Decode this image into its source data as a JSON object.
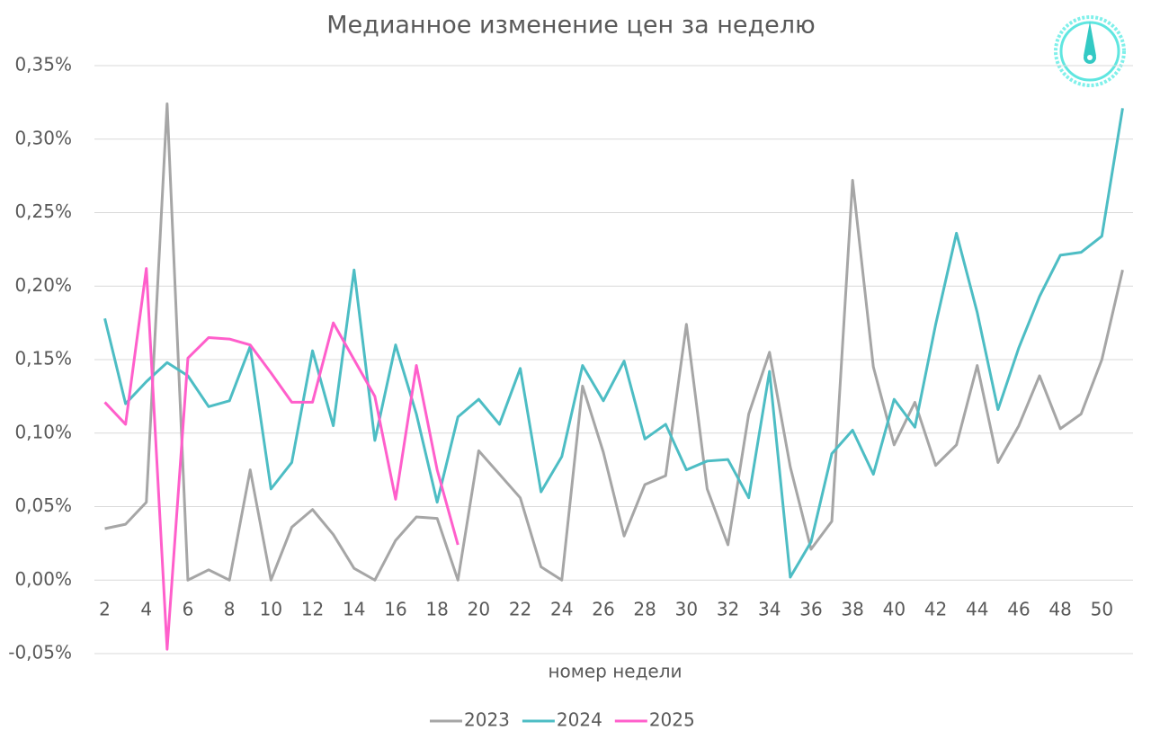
{
  "chart_data": {
    "type": "line",
    "title": "Медианное изменение цен за неделю",
    "x_label": "номер недели",
    "x": [
      2,
      3,
      4,
      5,
      6,
      7,
      8,
      9,
      10,
      11,
      12,
      13,
      14,
      15,
      16,
      17,
      18,
      19,
      20,
      21,
      22,
      23,
      24,
      25,
      26,
      27,
      28,
      29,
      30,
      31,
      32,
      33,
      34,
      35,
      36,
      37,
      38,
      39,
      40,
      41,
      42,
      43,
      44,
      45,
      46,
      47,
      48,
      49,
      50,
      51
    ],
    "series": [
      {
        "name": "2023",
        "color": "#a6a6a6",
        "values": [
          0.035,
          0.038,
          0.053,
          0.324,
          0.0,
          0.007,
          0.0,
          0.075,
          0.0,
          0.036,
          0.048,
          0.031,
          0.008,
          0.0,
          0.027,
          0.043,
          0.042,
          0.0,
          0.088,
          0.072,
          0.056,
          0.009,
          0.0,
          0.132,
          0.087,
          0.03,
          0.065,
          0.071,
          0.174,
          0.062,
          0.024,
          0.113,
          0.155,
          0.077,
          0.021,
          0.04,
          0.272,
          0.145,
          0.092,
          0.121,
          0.078,
          0.092,
          0.146,
          0.08,
          0.105,
          0.139,
          0.103,
          0.113,
          0.15,
          0.211
        ]
      },
      {
        "name": "2024",
        "color": "#4dbdc4",
        "values": [
          0.178,
          0.12,
          0.135,
          0.148,
          0.139,
          0.118,
          0.122,
          0.159,
          0.062,
          0.08,
          0.156,
          0.105,
          0.211,
          0.095,
          0.16,
          0.113,
          0.053,
          0.111,
          0.123,
          0.106,
          0.144,
          0.06,
          0.084,
          0.146,
          0.122,
          0.149,
          0.096,
          0.106,
          0.075,
          0.081,
          0.082,
          0.056,
          0.142,
          0.002,
          0.026,
          0.086,
          0.102,
          0.072,
          0.123,
          0.104,
          0.174,
          0.236,
          0.182,
          0.116,
          0.158,
          0.193,
          0.221,
          0.223,
          0.234,
          0.321
        ]
      },
      {
        "name": "2025",
        "color": "#ff5fcb",
        "values": [
          0.121,
          0.106,
          0.212,
          -0.047,
          0.151,
          0.165,
          0.164,
          0.16,
          0.141,
          0.121,
          0.121,
          0.175,
          0.15,
          0.125,
          0.055,
          0.146,
          0.075,
          0.024,
          null,
          null,
          null,
          null,
          null,
          null,
          null,
          null,
          null,
          null,
          null,
          null,
          null,
          null,
          null,
          null,
          null,
          null,
          null,
          null,
          null,
          null,
          null,
          null,
          null,
          null,
          null,
          null,
          null,
          null,
          null,
          null
        ]
      }
    ],
    "xlim": [
      1.5,
      51.5
    ],
    "xticks": [
      2,
      4,
      6,
      8,
      10,
      12,
      14,
      16,
      18,
      20,
      22,
      24,
      26,
      28,
      30,
      32,
      34,
      36,
      38,
      40,
      42,
      44,
      46,
      48,
      50
    ],
    "ylim": [
      -0.05,
      0.35
    ],
    "yticks": [
      {
        "value": -0.05,
        "label": "-0,05%"
      },
      {
        "value": 0,
        "label": "0,00%"
      },
      {
        "value": 0.05,
        "label": "0,05%"
      },
      {
        "value": 0.1,
        "label": "0,10%"
      },
      {
        "value": 0.15,
        "label": "0,15%"
      },
      {
        "value": 0.2,
        "label": "0,20%"
      },
      {
        "value": 0.25,
        "label": "0,25%"
      },
      {
        "value": 0.3,
        "label": "0,30%"
      },
      {
        "value": 0.35,
        "label": "0,35%"
      }
    ],
    "grid": true,
    "legend": "bottom"
  }
}
